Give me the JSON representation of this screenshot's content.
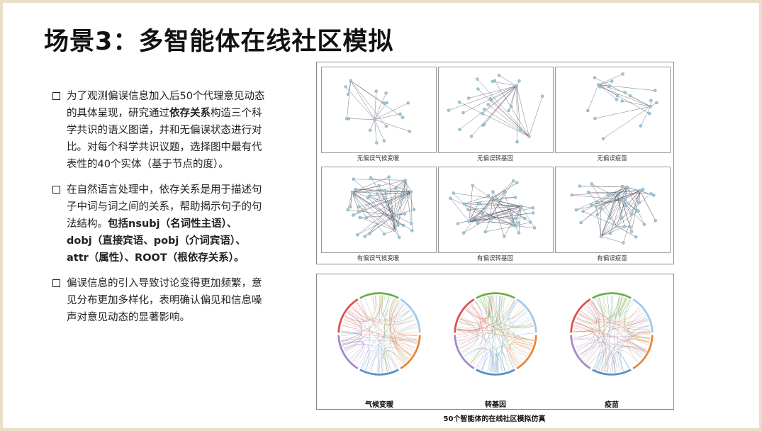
{
  "title": "场景3：多智能体在线社区模拟",
  "bullets": [
    {
      "parts": [
        {
          "t": "为了观测偏误信息加入后50个代理意见动态的具体呈现，研究通过",
          "b": false
        },
        {
          "t": "依存关系",
          "b": true
        },
        {
          "t": "构造三个科学共识的语义图谱，并和无偏误状态进行对比。对每个科学共识议题，选择图中最有代表性的40个实体（基于节点的度）。",
          "b": false
        }
      ]
    },
    {
      "parts": [
        {
          "t": "在自然语言处理中，依存关系是用于描述句子中词与词之间的关系，帮助揭示句子的句法结构。",
          "b": false
        },
        {
          "t": "包括nsubj（名词性主语）、 dobj（直接宾语、pobj（介词宾语）、attr（属性）、ROOT（根依存关系）。",
          "b": true
        }
      ]
    },
    {
      "parts": [
        {
          "t": "偏误信息的引入导致讨论变得更加频繁，意见分布更加多样化，表明确认偏见和信息噪声对意见动态的显著影响。",
          "b": false
        }
      ]
    }
  ],
  "graphs": {
    "captions": [
      "无偏误气候变暖",
      "无偏误转基因",
      "无偏误疫苗",
      "有偏误气候变暖",
      "有偏误转基因",
      "有偏误疫苗"
    ]
  },
  "chords": {
    "labels": [
      "气候变暖",
      "转基因",
      "疫苗"
    ],
    "colors": [
      "#e8863a",
      "#5b8fc9",
      "#a389c9",
      "#d9534f",
      "#6ab04c",
      "#9ec9e8"
    ]
  },
  "footer_caption": "50个智能体的在线社区模拟仿真"
}
